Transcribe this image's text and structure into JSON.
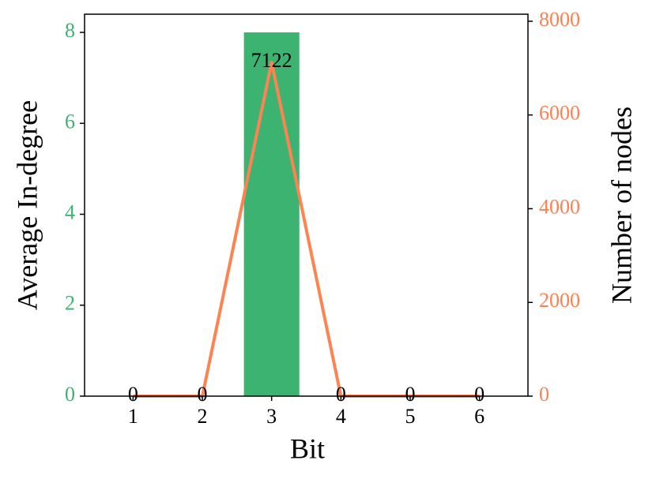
{
  "chart_data": {
    "type": "combo",
    "x": [
      1,
      2,
      3,
      4,
      5,
      6
    ],
    "xlim": [
      0.3,
      6.7
    ],
    "xticks": [
      1,
      2,
      3,
      4,
      5,
      6
    ],
    "ylim": [
      0,
      8.4
    ],
    "yticks": [
      0,
      2,
      4,
      6,
      8
    ],
    "ytick_color": "#3cb371",
    "y2lim": [
      0,
      8150
    ],
    "y2ticks": [
      0,
      2000,
      4000,
      6000,
      8000
    ],
    "y2tick_color": "#ff7f50",
    "xlabel": "Bit",
    "ylabel": "Average In-degree",
    "y2label": "Number of nodes",
    "series": [
      {
        "type": "bar",
        "axis": "y",
        "color": "#3cb371",
        "values": [
          0,
          0,
          8,
          0,
          0,
          0
        ]
      },
      {
        "type": "line",
        "axis": "y2",
        "color": "#ff8350",
        "values": [
          0,
          0,
          7122,
          0,
          0,
          0
        ],
        "data_labels": true
      }
    ]
  }
}
